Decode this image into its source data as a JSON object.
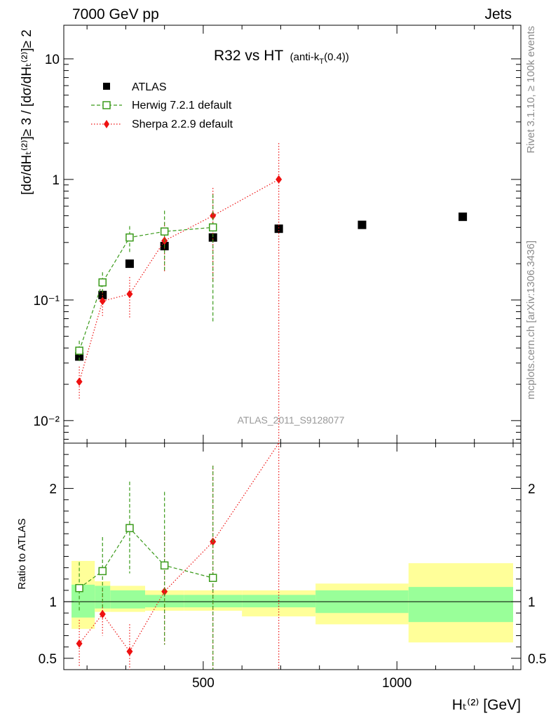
{
  "header": {
    "left": "7000 GeV pp",
    "right": "Jets"
  },
  "side_labels": {
    "rivet": "Rivet 3.1.10, ≥ 100k events",
    "mcplots": "mcplots.cern.ch [arXiv:1306.3436]"
  },
  "plot": {
    "title_main": "R32 vs HT",
    "title_sub": "(anti-k",
    "title_sub_k": "T",
    "title_sub_tail": "(0.4))",
    "watermark": "ATLAS_2011_S9128077"
  },
  "axes": {
    "ylabel_main": "[dσ/dHₜ⁽²⁾]≥ 3 / [dσ/dHₜ⁽²⁾]≥ 2",
    "ylabel_ratio": "Ratio to ATLAS",
    "xlabel": "Hₜ⁽²⁾ [GeV]",
    "x_ticks": [
      "500",
      "1000"
    ],
    "y_main_ticks": [
      "10⁻²",
      "10⁻¹",
      "1",
      "10"
    ],
    "y_ratio_ticks": [
      "0.5",
      "1",
      "2"
    ]
  },
  "legend": [
    {
      "label": "ATLAS",
      "color": "#000000",
      "marker": "square-filled"
    },
    {
      "label": "Herwig 7.2.1 default",
      "color": "#3a9a1a",
      "marker": "square-open",
      "line": "dashed"
    },
    {
      "label": "Sherpa 2.2.9 default",
      "color": "#ee1111",
      "marker": "diamond",
      "line": "dotted"
    }
  ],
  "chart_data": {
    "type": "scatter",
    "xlim": [
      140,
      1320
    ],
    "ylim_main": [
      0.0065,
      19
    ],
    "ylim_ratio": [
      0.4,
      2.4
    ],
    "yscale": "log",
    "series": [
      {
        "name": "ATLAS",
        "x": [
          180,
          240,
          310,
          400,
          525,
          695,
          910,
          1170
        ],
        "y": [
          0.034,
          0.11,
          0.2,
          0.28,
          0.33,
          0.39,
          0.42,
          0.49
        ]
      },
      {
        "name": "Herwig 7.2.1 default",
        "x": [
          180,
          240,
          310,
          400,
          525
        ],
        "y": [
          0.038,
          0.14,
          0.33,
          0.37,
          0.4
        ],
        "y_lo": [
          0.031,
          0.11,
          0.25,
          0.17,
          0.065
        ],
        "y_hi": [
          0.046,
          0.17,
          0.41,
          0.55,
          0.75
        ],
        "ratio": [
          1.12,
          1.27,
          1.65,
          1.32,
          1.21
        ],
        "ratio_lo": [
          0.91,
          0.95,
          1.25,
          0.62,
          0.2
        ],
        "ratio_hi": [
          1.35,
          1.57,
          2.06,
          1.97,
          2.2
        ]
      },
      {
        "name": "Sherpa 2.2.9 default",
        "x": [
          180,
          240,
          310,
          400,
          525,
          695
        ],
        "y": [
          0.021,
          0.098,
          0.112,
          0.31,
          0.5,
          1.0
        ],
        "y_lo": [
          0.015,
          0.074,
          0.07,
          0.17,
          0.14,
          0.005
        ],
        "y_hi": [
          0.028,
          0.122,
          0.155,
          0.44,
          0.85,
          2.0
        ],
        "ratio": [
          0.63,
          0.89,
          0.56,
          1.09,
          1.53,
          2.56
        ],
        "ratio_lo": [
          0.42,
          0.7,
          0.33,
          0.62,
          0.3,
          0.3
        ],
        "ratio_hi": [
          0.84,
          1.1,
          0.8,
          1.6,
          2.2,
          2.6
        ]
      }
    ],
    "ratio_bands": [
      {
        "x0": 160,
        "x1": 220,
        "in_lo": 0.86,
        "in_hi": 1.15,
        "out_lo": 0.76,
        "out_hi": 1.36
      },
      {
        "x0": 220,
        "x1": 260,
        "in_lo": 0.94,
        "in_hi": 1.14,
        "out_lo": 0.91,
        "out_hi": 1.18
      },
      {
        "x0": 260,
        "x1": 350,
        "in_lo": 0.94,
        "in_hi": 1.1,
        "out_lo": 0.91,
        "out_hi": 1.14
      },
      {
        "x0": 350,
        "x1": 450,
        "in_lo": 0.95,
        "in_hi": 1.06,
        "out_lo": 0.92,
        "out_hi": 1.1
      },
      {
        "x0": 450,
        "x1": 600,
        "in_lo": 0.95,
        "in_hi": 1.06,
        "out_lo": 0.92,
        "out_hi": 1.1
      },
      {
        "x0": 600,
        "x1": 790,
        "in_lo": 0.95,
        "in_hi": 1.06,
        "out_lo": 0.87,
        "out_hi": 1.1
      },
      {
        "x0": 790,
        "x1": 1030,
        "in_lo": 0.9,
        "in_hi": 1.1,
        "out_lo": 0.8,
        "out_hi": 1.16
      },
      {
        "x0": 1030,
        "x1": 1300,
        "in_lo": 0.82,
        "in_hi": 1.13,
        "out_lo": 0.64,
        "out_hi": 1.34
      }
    ],
    "band_colors": {
      "inner": "#99ff99",
      "outer": "#ffff99"
    }
  }
}
